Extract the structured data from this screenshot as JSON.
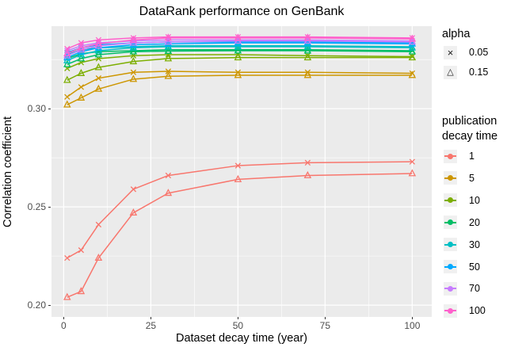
{
  "chart_data": {
    "type": "line",
    "title": "DataRank performance on GenBank",
    "xlabel": "Dataset decay time (year)",
    "ylabel": "Correlation coefficient",
    "panel_bg": "#EBEBEB",
    "grid_color": "#FFFFFF",
    "tick_label_color": "#4d4d4d",
    "x": [
      1,
      5,
      10,
      20,
      30,
      50,
      70,
      100
    ],
    "xlim": [
      -3.5,
      105.6
    ],
    "ylim": [
      0.194,
      0.342
    ],
    "xticks": [
      0,
      25,
      50,
      75,
      100
    ],
    "xtick_labels": [
      "0",
      "25",
      "50",
      "75",
      "100"
    ],
    "yticks": [
      0.3,
      0.25,
      0.2
    ],
    "ytick_labels": [
      "0.30",
      "0.25",
      "0.20"
    ],
    "x_minor": [
      12.5,
      37.5,
      62.5,
      87.5
    ],
    "y_minor": [
      0.225,
      0.275,
      0.325
    ],
    "grid": "major+minor",
    "legend_position": "right",
    "series": [
      {
        "name": "pub 1 alpha 0.15",
        "pub_decay": 1,
        "alpha": 0.15,
        "marker": "triangle",
        "color": "#F8766D",
        "values": [
          0.204,
          0.207,
          0.224,
          0.247,
          0.257,
          0.264,
          0.266,
          0.267
        ]
      },
      {
        "name": "pub 1 alpha 0.05",
        "pub_decay": 1,
        "alpha": 0.05,
        "marker": "x",
        "color": "#F8766D",
        "values": [
          0.224,
          0.228,
          0.241,
          0.259,
          0.266,
          0.271,
          0.2725,
          0.273
        ]
      },
      {
        "name": "pub 5 alpha 0.15",
        "pub_decay": 5,
        "alpha": 0.15,
        "marker": "triangle",
        "color": "#CD9600",
        "values": [
          0.302,
          0.3055,
          0.31,
          0.315,
          0.3165,
          0.317,
          0.317,
          0.317
        ]
      },
      {
        "name": "pub 5 alpha 0.05",
        "pub_decay": 5,
        "alpha": 0.05,
        "marker": "x",
        "color": "#CD9600",
        "values": [
          0.306,
          0.311,
          0.3155,
          0.3185,
          0.319,
          0.3185,
          0.3185,
          0.318
        ]
      },
      {
        "name": "pub 10 alpha 0.15",
        "pub_decay": 10,
        "alpha": 0.15,
        "marker": "triangle",
        "color": "#7CAE00",
        "values": [
          0.3145,
          0.318,
          0.321,
          0.324,
          0.3255,
          0.326,
          0.326,
          0.326
        ]
      },
      {
        "name": "pub 10 alpha 0.05",
        "pub_decay": 10,
        "alpha": 0.05,
        "marker": "x",
        "color": "#7CAE00",
        "values": [
          0.3205,
          0.3235,
          0.3255,
          0.327,
          0.3275,
          0.3275,
          0.327,
          0.3265
        ]
      },
      {
        "name": "pub 20 alpha 0.15",
        "pub_decay": 20,
        "alpha": 0.15,
        "marker": "triangle",
        "color": "#00BE67",
        "values": [
          0.3225,
          0.3255,
          0.3275,
          0.329,
          0.3293,
          0.3295,
          0.3295,
          0.329
        ]
      },
      {
        "name": "pub 20 alpha 0.05",
        "pub_decay": 20,
        "alpha": 0.05,
        "marker": "x",
        "color": "#00BE67",
        "values": [
          0.3255,
          0.328,
          0.329,
          0.3295,
          0.33,
          0.33,
          0.33,
          0.3295
        ]
      },
      {
        "name": "pub 30 alpha 0.15",
        "pub_decay": 30,
        "alpha": 0.15,
        "marker": "triangle",
        "color": "#00BFC4",
        "values": [
          0.3245,
          0.3275,
          0.3295,
          0.331,
          0.3315,
          0.3315,
          0.3315,
          0.331
        ]
      },
      {
        "name": "pub 30 alpha 0.05",
        "pub_decay": 30,
        "alpha": 0.05,
        "marker": "x",
        "color": "#00BFC4",
        "values": [
          0.3275,
          0.33,
          0.331,
          0.3315,
          0.332,
          0.332,
          0.332,
          0.3315
        ]
      },
      {
        "name": "pub 50 alpha 0.15",
        "pub_decay": 50,
        "alpha": 0.15,
        "marker": "triangle",
        "color": "#00A9FF",
        "values": [
          0.326,
          0.329,
          0.331,
          0.3325,
          0.333,
          0.3335,
          0.3335,
          0.333
        ]
      },
      {
        "name": "pub 50 alpha 0.05",
        "pub_decay": 50,
        "alpha": 0.05,
        "marker": "x",
        "color": "#00A9FF",
        "values": [
          0.3285,
          0.331,
          0.3325,
          0.3335,
          0.334,
          0.334,
          0.334,
          0.3335
        ]
      },
      {
        "name": "pub 70 alpha 0.15",
        "pub_decay": 70,
        "alpha": 0.15,
        "marker": "triangle",
        "color": "#C77CFF",
        "values": [
          0.327,
          0.33,
          0.332,
          0.3335,
          0.334,
          0.3345,
          0.3345,
          0.334
        ]
      },
      {
        "name": "pub 70 alpha 0.05",
        "pub_decay": 70,
        "alpha": 0.05,
        "marker": "x",
        "color": "#C77CFF",
        "values": [
          0.3295,
          0.332,
          0.3335,
          0.3345,
          0.335,
          0.335,
          0.335,
          0.3345
        ]
      },
      {
        "name": "pub 100 alpha 0.15",
        "pub_decay": 100,
        "alpha": 0.15,
        "marker": "triangle",
        "color": "#FF61CC",
        "values": [
          0.328,
          0.331,
          0.333,
          0.335,
          0.336,
          0.336,
          0.336,
          0.3355
        ]
      },
      {
        "name": "pub 100 alpha 0.05",
        "pub_decay": 100,
        "alpha": 0.05,
        "marker": "x",
        "color": "#FF61CC",
        "values": [
          0.3305,
          0.3335,
          0.335,
          0.336,
          0.3365,
          0.3365,
          0.3365,
          0.336
        ]
      }
    ],
    "legend_alpha": {
      "title": "alpha",
      "entries": [
        {
          "symbol": "×",
          "label": "0.05",
          "marker": "x"
        },
        {
          "symbol": "△",
          "label": "0.15",
          "marker": "triangle"
        }
      ]
    },
    "legend_color": {
      "title": "publication decay time",
      "entries": [
        {
          "label": "1",
          "color": "#F8766D"
        },
        {
          "label": "5",
          "color": "#CD9600"
        },
        {
          "label": "10",
          "color": "#7CAE00"
        },
        {
          "label": "20",
          "color": "#00BE67"
        },
        {
          "label": "30",
          "color": "#00BFC4"
        },
        {
          "label": "50",
          "color": "#00A9FF"
        },
        {
          "label": "70",
          "color": "#C77CFF"
        },
        {
          "label": "100",
          "color": "#FF61CC"
        }
      ]
    }
  }
}
